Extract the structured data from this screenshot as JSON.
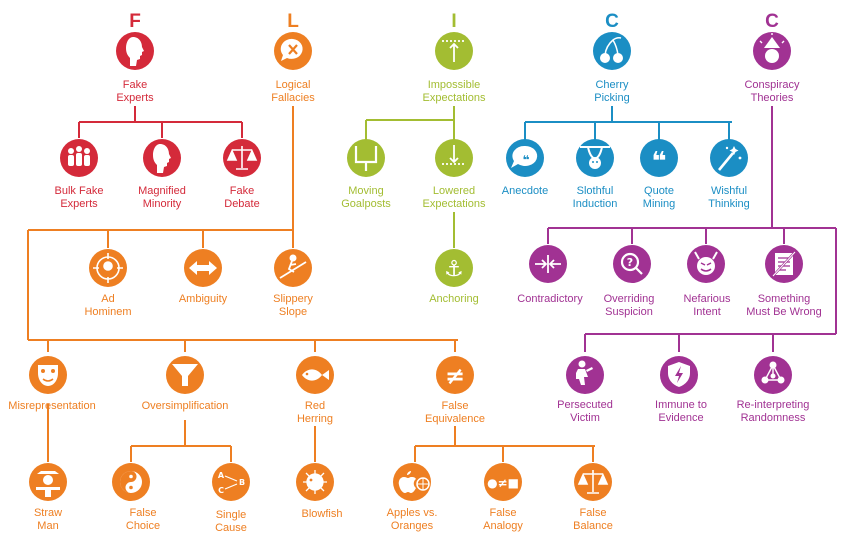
{
  "colors": {
    "fake_experts": "#d42a3a",
    "logical_fallacies": "#ee7f22",
    "impossible_expectations": "#a3bd32",
    "cherry_picking": "#1b8ec4",
    "conspiracy_theories": "#a13293"
  },
  "letters": {
    "f": "F",
    "l": "L",
    "i": "I",
    "c1": "C",
    "c2": "C"
  },
  "nodes": {
    "fake_experts": {
      "line1": "Fake",
      "line2": "Experts",
      "icon": "face-profile-icon"
    },
    "bulk_fake_experts": {
      "line1": "Bulk Fake",
      "line2": "Experts",
      "icon": "crowd-icon"
    },
    "magnified_minority": {
      "line1": "Magnified",
      "line2": "Minority",
      "icon": "face-profile-icon"
    },
    "fake_debate": {
      "line1": "Fake",
      "line2": "Debate",
      "icon": "scales-icon"
    },
    "logical_fallacies": {
      "line1": "Logical",
      "line2": "Fallacies",
      "icon": "speech-bubble-x-icon"
    },
    "ad_hominem": {
      "line1": "Ad",
      "line2": "Hominem",
      "icon": "target-head-icon"
    },
    "ambiguity": {
      "line1": "Ambiguity",
      "icon": "double-arrow-icon"
    },
    "slippery_slope": {
      "line1": "Slippery",
      "line2": "Slope",
      "icon": "sliding-figure-icon"
    },
    "misrepresentation": {
      "line1": "Misrepresentation",
      "icon": "mask-icon"
    },
    "straw_man": {
      "line1": "Straw",
      "line2": "Man",
      "icon": "scarecrow-icon"
    },
    "oversimplification": {
      "line1": "Oversimplification",
      "icon": "funnel-icon"
    },
    "false_choice": {
      "line1": "False",
      "line2": "Choice",
      "icon": "yin-yang-icon"
    },
    "single_cause": {
      "line1": "Single",
      "line2": "Cause",
      "icon": "abc-arrows-icon",
      "glyph_a": "A",
      "glyph_b": "B",
      "glyph_c": "C"
    },
    "red_herring": {
      "line1": "Red",
      "line2": "Herring",
      "icon": "fish-icon"
    },
    "blowfish": {
      "line1": "Blowfish",
      "icon": "blowfish-icon"
    },
    "false_equivalence": {
      "line1": "False",
      "line2": "Equivalence",
      "icon": "not-equal-icon",
      "glyph": "≠"
    },
    "apples_vs_oranges": {
      "line1": "Apples vs.",
      "line2": "Oranges",
      "icon": "apple-orange-icon"
    },
    "false_analogy": {
      "line1": "False",
      "line2": "Analogy",
      "icon": "not-equal-shapes-icon",
      "glyph": "●≠■"
    },
    "false_balance": {
      "line1": "False",
      "line2": "Balance",
      "icon": "scales-icon"
    },
    "impossible_expectations": {
      "line1": "Impossible",
      "line2": "Expectations",
      "icon": "raised-bar-icon"
    },
    "moving_goalposts": {
      "line1": "Moving",
      "line2": "Goalposts",
      "icon": "goalpost-icon"
    },
    "lowered_expectations": {
      "line1": "Lowered",
      "line2": "Expectations",
      "icon": "lowered-bar-icon"
    },
    "anchoring": {
      "line1": "Anchoring",
      "icon": "anchor-icon",
      "glyph": "⚓"
    },
    "cherry_picking": {
      "line1": "Cherry",
      "line2": "Picking",
      "icon": "cherries-icon"
    },
    "anecdote": {
      "line1": "Anecdote",
      "icon": "speech-bubble-icon",
      "glyph": "❝"
    },
    "slothful_induction": {
      "line1": "Slothful",
      "line2": "Induction",
      "icon": "sloth-icon"
    },
    "quote_mining": {
      "line1": "Quote",
      "line2": "Mining",
      "icon": "quote-marks-icon",
      "glyph": "❝"
    },
    "wishful_thinking": {
      "line1": "Wishful",
      "line2": "Thinking",
      "icon": "magic-wand-icon"
    },
    "conspiracy_theories": {
      "line1": "Conspiracy",
      "line2": "Theories",
      "icon": "tinfoil-hat-icon"
    },
    "contradictory": {
      "line1": "Contradictory",
      "icon": "opposing-arrows-icon"
    },
    "overriding_suspicion": {
      "line1": "Overriding",
      "line2": "Suspicion",
      "icon": "magnifier-question-icon",
      "glyph": "?"
    },
    "nefarious_intent": {
      "line1": "Nefarious",
      "line2": "Intent",
      "icon": "devil-face-icon"
    },
    "something_must_be_wrong": {
      "line1": "Something",
      "line2": "Must Be Wrong",
      "icon": "crossed-document-icon"
    },
    "persecuted_victim": {
      "line1": "Persecuted",
      "line2": "Victim",
      "icon": "kneeling-figure-icon"
    },
    "immune_to_evidence": {
      "line1": "Immune to",
      "line2": "Evidence",
      "icon": "shield-bolt-icon"
    },
    "reinterpreting_randomness": {
      "line1": "Re-interpreting",
      "line2": "Randomness",
      "icon": "connected-dots-icon"
    }
  }
}
